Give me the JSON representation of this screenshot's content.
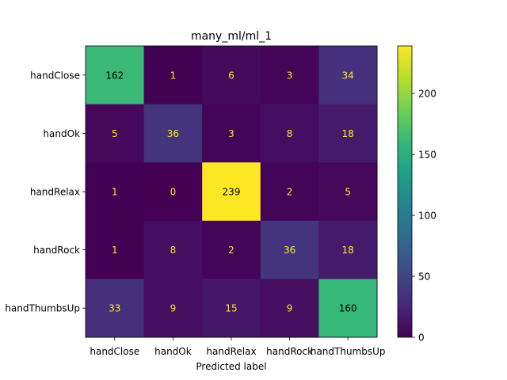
{
  "chart_data": {
    "type": "heatmap",
    "title": "many_ml/ml_1",
    "xlabel": "Predicted label",
    "ylabel": "",
    "row_labels": [
      "handClose",
      "handOk",
      "handRelax",
      "handRock",
      "handThumbsUp"
    ],
    "col_labels": [
      "handClose",
      "handOk",
      "handRelax",
      "handRock",
      "handThumbsUp"
    ],
    "values": [
      [
        162,
        1,
        6,
        3,
        34
      ],
      [
        5,
        36,
        3,
        8,
        18
      ],
      [
        1,
        0,
        239,
        2,
        5
      ],
      [
        1,
        8,
        2,
        36,
        18
      ],
      [
        33,
        9,
        15,
        9,
        160
      ]
    ],
    "colormap": "viridis",
    "color_range": [
      0,
      239
    ],
    "colorbar_ticks": [
      0,
      50,
      100,
      150,
      200
    ],
    "colors": {
      "text_dark": "#000000",
      "text_light": "#fde725"
    }
  }
}
